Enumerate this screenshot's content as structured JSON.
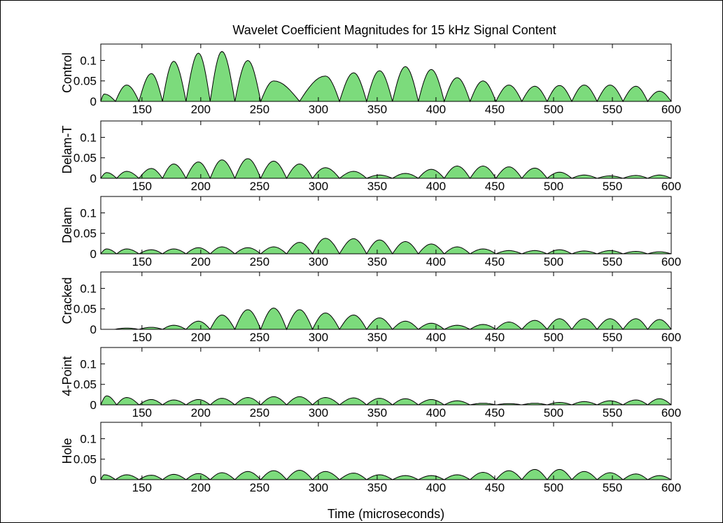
{
  "chart_data": {
    "type": "area",
    "title": "Wavelet Coefficient Magnitudes for 15 kHz Signal Content",
    "xlabel": "Time (microseconds)",
    "xlim": [
      115,
      600
    ],
    "ylim": [
      0,
      0.14
    ],
    "x_ticks": [
      150,
      200,
      250,
      300,
      350,
      400,
      450,
      500,
      550,
      600
    ],
    "x_tick_labels": [
      "150",
      "200",
      "250",
      "300",
      "350",
      "400",
      "450",
      "500",
      "550",
      "600"
    ],
    "y_ticks": [
      0,
      0.05,
      0.1
    ],
    "y_tick_labels": [
      "0",
      "0.05",
      "0.1"
    ],
    "grid": false,
    "fill_color": "#7CDB7C",
    "line_color": "#000000",
    "panels": [
      {
        "name": "Control",
        "peak_x": [
          118,
          137,
          158,
          177,
          198,
          218,
          240,
          262,
          306,
          330,
          352,
          374,
          396,
          418,
          440,
          462,
          484,
          505,
          526,
          548,
          570,
          590
        ],
        "peak_y": [
          0.018,
          0.04,
          0.068,
          0.098,
          0.118,
          0.122,
          0.1,
          0.05,
          0.062,
          0.07,
          0.075,
          0.085,
          0.078,
          0.058,
          0.05,
          0.04,
          0.037,
          0.039,
          0.04,
          0.04,
          0.037,
          0.025
        ]
      },
      {
        "name": "Delam-T",
        "peak_x": [
          120,
          137,
          158,
          177,
          198,
          218,
          240,
          262,
          284,
          306,
          330,
          352,
          374,
          396,
          418,
          440,
          462,
          484,
          505,
          526,
          548,
          570,
          590
        ],
        "peak_y": [
          0.014,
          0.017,
          0.024,
          0.035,
          0.04,
          0.045,
          0.048,
          0.042,
          0.035,
          0.026,
          0.017,
          0.008,
          0.012,
          0.022,
          0.03,
          0.03,
          0.028,
          0.025,
          0.015,
          0.008,
          0.006,
          0.007,
          0.008
        ]
      },
      {
        "name": "Delam",
        "peak_x": [
          120,
          137,
          158,
          177,
          198,
          218,
          240,
          262,
          284,
          306,
          330,
          352,
          374,
          396,
          418,
          440,
          462,
          484,
          505,
          526,
          548,
          570,
          590
        ],
        "peak_y": [
          0.012,
          0.012,
          0.01,
          0.012,
          0.015,
          0.017,
          0.015,
          0.017,
          0.028,
          0.038,
          0.037,
          0.034,
          0.03,
          0.024,
          0.017,
          0.012,
          0.008,
          0.008,
          0.01,
          0.007,
          0.008,
          0.006,
          0.005
        ]
      },
      {
        "name": "Cracked",
        "peak_x": [
          137,
          158,
          177,
          198,
          218,
          240,
          262,
          284,
          306,
          330,
          352,
          374,
          396,
          418,
          440,
          462,
          484,
          505,
          526,
          548,
          570,
          590
        ],
        "peak_y": [
          0.003,
          0.005,
          0.01,
          0.02,
          0.035,
          0.048,
          0.052,
          0.048,
          0.04,
          0.035,
          0.028,
          0.02,
          0.015,
          0.01,
          0.012,
          0.018,
          0.022,
          0.026,
          0.026,
          0.026,
          0.026,
          0.024
        ]
      },
      {
        "name": "4-Point",
        "peak_x": [
          120,
          137,
          158,
          177,
          198,
          218,
          240,
          262,
          284,
          306,
          330,
          352,
          374,
          396,
          418,
          440,
          462,
          484,
          505,
          526,
          548,
          570,
          590
        ],
        "peak_y": [
          0.022,
          0.018,
          0.013,
          0.012,
          0.013,
          0.016,
          0.018,
          0.02,
          0.02,
          0.018,
          0.017,
          0.016,
          0.015,
          0.013,
          0.01,
          0.004,
          0.003,
          0.004,
          0.006,
          0.008,
          0.01,
          0.012,
          0.015
        ]
      },
      {
        "name": "Hole",
        "peak_x": [
          118,
          137,
          158,
          177,
          198,
          218,
          240,
          262,
          284,
          306,
          330,
          352,
          374,
          396,
          418,
          440,
          462,
          484,
          505,
          526,
          548,
          570,
          590
        ],
        "peak_y": [
          0.012,
          0.012,
          0.011,
          0.013,
          0.015,
          0.017,
          0.02,
          0.022,
          0.023,
          0.02,
          0.016,
          0.012,
          0.01,
          0.01,
          0.012,
          0.018,
          0.022,
          0.025,
          0.025,
          0.02,
          0.017,
          0.014,
          0.01
        ]
      }
    ]
  }
}
